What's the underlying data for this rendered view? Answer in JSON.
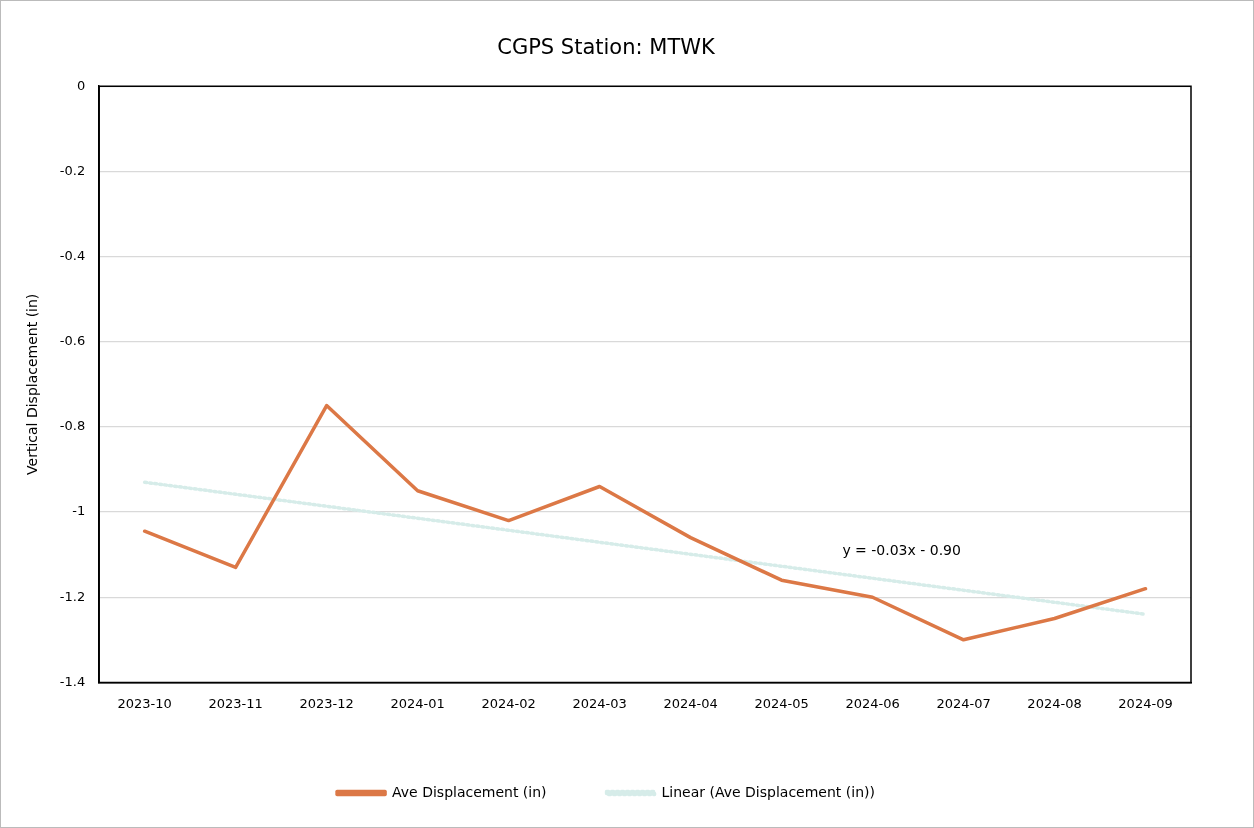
{
  "chart_data": {
    "type": "line",
    "title": "CGPS Station: MTWK",
    "ylabel": "Vertical Displacement (in)",
    "categories": [
      "2023-10",
      "2023-11",
      "2023-12",
      "2024-01",
      "2024-02",
      "2024-03",
      "2024-04",
      "2024-05",
      "2024-06",
      "2024-07",
      "2024-08",
      "2024-09"
    ],
    "series": [
      {
        "name": "Ave Displacement (in)",
        "color": "#dc7846",
        "values": [
          -1.045,
          -1.13,
          -0.75,
          -0.95,
          -1.02,
          -0.94,
          -1.06,
          -1.16,
          -1.2,
          -1.3,
          -1.25,
          -1.18
        ]
      },
      {
        "name": "Linear (Ave Displacement (in))",
        "color": "#d6ece9",
        "line_style": "dotted",
        "values": [
          -0.93,
          null,
          null,
          null,
          null,
          null,
          null,
          null,
          null,
          null,
          null,
          -1.24
        ]
      }
    ],
    "ylim": [
      -1.4,
      0
    ],
    "yticks": [
      0,
      -0.2,
      -0.4,
      -0.6,
      -0.8,
      -1,
      -1.2,
      -1.4
    ],
    "grid": "y",
    "legend": "bottom",
    "marker": "none",
    "annotations": [
      "y = -0.03x - 0.90"
    ]
  }
}
